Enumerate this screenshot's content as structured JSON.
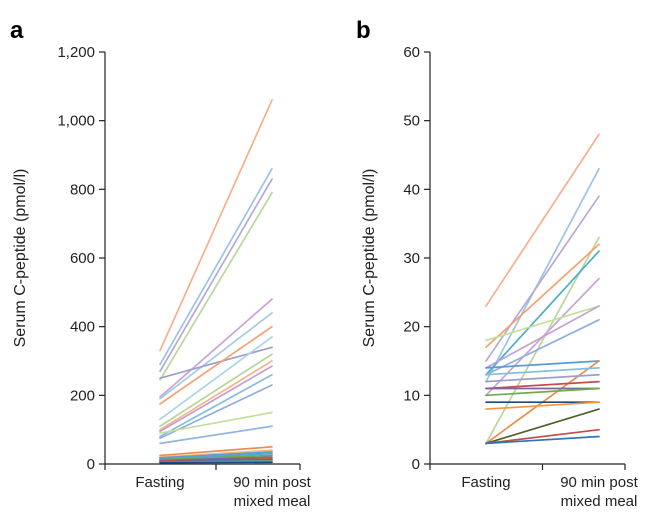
{
  "chart_data": [
    {
      "panel": "a",
      "type": "line",
      "categories": [
        "Fasting",
        "90 min post mixed meal"
      ],
      "category_lines": [
        [
          "Fasting"
        ],
        [
          "90 min post",
          "mixed meal"
        ]
      ],
      "ylabel": "Serum C-peptide (pmol/l)",
      "ylim": [
        0,
        1200
      ],
      "yticks": [
        0,
        200,
        400,
        600,
        800,
        "1,000",
        "1,200"
      ],
      "grid": false,
      "series": [
        {
          "values": [
            330,
            1060
          ],
          "color": "#f7b08d"
        },
        {
          "values": [
            290,
            860
          ],
          "color": "#9cc3e3"
        },
        {
          "values": [
            270,
            830
          ],
          "color": "#b7a9d4"
        },
        {
          "values": [
            245,
            790
          ],
          "color": "#b8d89a"
        },
        {
          "values": [
            195,
            480
          ],
          "color": "#c7a5d8"
        },
        {
          "values": [
            190,
            440
          ],
          "color": "#a7c9e6"
        },
        {
          "values": [
            250,
            340
          ],
          "color": "#9e9ec8"
        },
        {
          "values": [
            175,
            400
          ],
          "color": "#f4a070"
        },
        {
          "values": [
            130,
            370
          ],
          "color": "#a9d4e7"
        },
        {
          "values": [
            110,
            320
          ],
          "color": "#b5d49a"
        },
        {
          "values": [
            100,
            300
          ],
          "color": "#f7b389"
        },
        {
          "values": [
            95,
            285
          ],
          "color": "#c29fd4"
        },
        {
          "values": [
            80,
            260
          ],
          "color": "#87bfd8"
        },
        {
          "values": [
            75,
            230
          ],
          "color": "#8faee0"
        },
        {
          "values": [
            90,
            150
          ],
          "color": "#c4df98"
        },
        {
          "values": [
            60,
            110
          ],
          "color": "#92b4e3"
        },
        {
          "values": [
            25,
            50
          ],
          "color": "#f08a4b"
        },
        {
          "values": [
            20,
            40
          ],
          "color": "#f4b183"
        },
        {
          "values": [
            18,
            35
          ],
          "color": "#5b9bd5"
        },
        {
          "values": [
            15,
            30
          ],
          "color": "#4bacc6"
        },
        {
          "values": [
            12,
            25
          ],
          "color": "#70ad47"
        },
        {
          "values": [
            10,
            20
          ],
          "color": "#8064a2"
        },
        {
          "values": [
            8,
            15
          ],
          "color": "#c0504d"
        },
        {
          "values": [
            6,
            12
          ],
          "color": "#2e75b6"
        },
        {
          "values": [
            5,
            8
          ],
          "color": "#9bbb59"
        },
        {
          "values": [
            4,
            5
          ],
          "color": "#1f497d"
        }
      ]
    },
    {
      "panel": "b",
      "type": "line",
      "categories": [
        "Fasting",
        "90 min post mixed meal"
      ],
      "category_lines": [
        [
          "Fasting"
        ],
        [
          "90 min post",
          "mixed meal"
        ]
      ],
      "ylabel": "Serum C-peptide (pmol/l)",
      "ylim": [
        0,
        60
      ],
      "yticks": [
        0,
        10,
        20,
        30,
        40,
        50,
        60
      ],
      "grid": false,
      "series": [
        {
          "values": [
            23,
            48
          ],
          "color": "#f7b08d"
        },
        {
          "values": [
            12,
            43
          ],
          "color": "#9cc3e3"
        },
        {
          "values": [
            15,
            39
          ],
          "color": "#b7a9d4"
        },
        {
          "values": [
            3,
            33
          ],
          "color": "#b8d89a"
        },
        {
          "values": [
            17,
            32
          ],
          "color": "#f4a070"
        },
        {
          "values": [
            13,
            31
          ],
          "color": "#4bacc6"
        },
        {
          "values": [
            10,
            27
          ],
          "color": "#c7a5d8"
        },
        {
          "values": [
            18,
            23
          ],
          "color": "#c4df98"
        },
        {
          "values": [
            14,
            23
          ],
          "color": "#c29fd4"
        },
        {
          "values": [
            13,
            21
          ],
          "color": "#8faee0"
        },
        {
          "values": [
            14,
            15
          ],
          "color": "#5b9bd5"
        },
        {
          "values": [
            3,
            15
          ],
          "color": "#f08a4b"
        },
        {
          "values": [
            13,
            14
          ],
          "color": "#87bfd8"
        },
        {
          "values": [
            12,
            13
          ],
          "color": "#9e9ec8"
        },
        {
          "values": [
            11,
            12
          ],
          "color": "#c0504d"
        },
        {
          "values": [
            11,
            11
          ],
          "color": "#8064a2"
        },
        {
          "values": [
            10,
            11
          ],
          "color": "#70ad47"
        },
        {
          "values": [
            9,
            9
          ],
          "color": "#1f497d"
        },
        {
          "values": [
            8,
            9
          ],
          "color": "#f79646"
        },
        {
          "values": [
            3,
            8
          ],
          "color": "#4f6228"
        },
        {
          "values": [
            3,
            5
          ],
          "color": "#c0504d"
        },
        {
          "values": [
            3,
            4
          ],
          "color": "#2e75b6"
        }
      ]
    }
  ]
}
